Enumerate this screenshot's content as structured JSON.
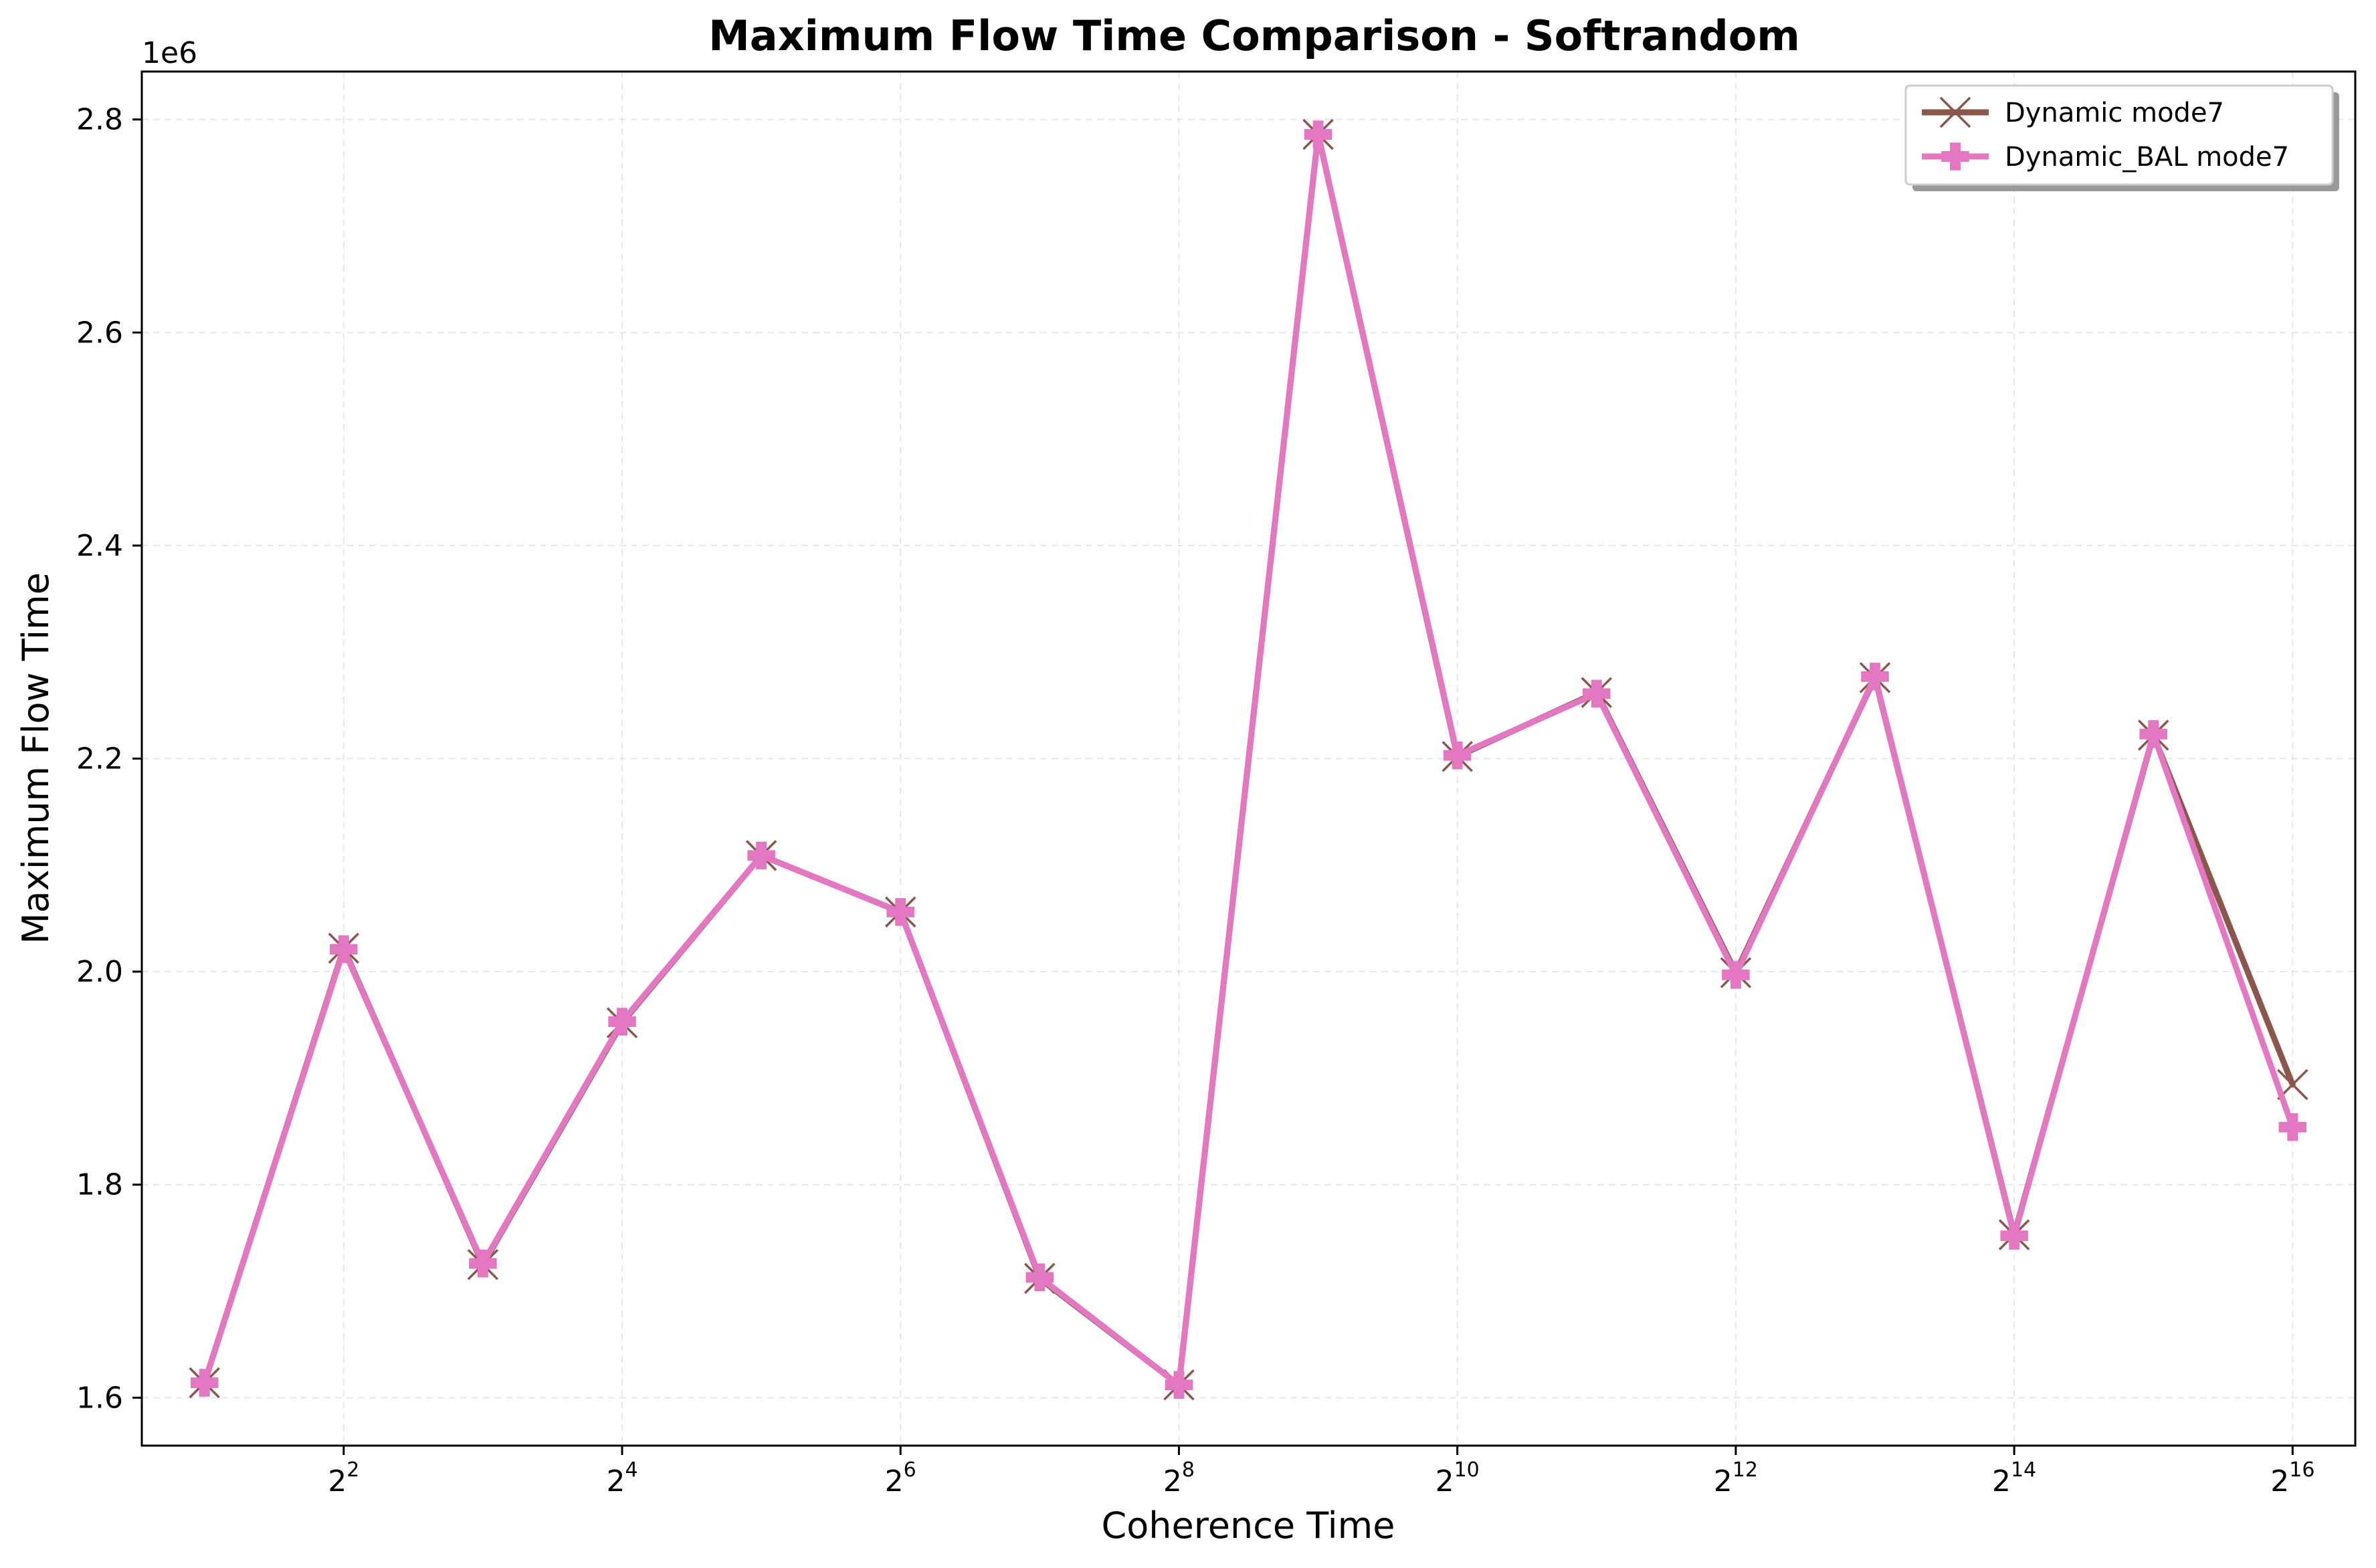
{
  "chart_data": {
    "type": "line",
    "title": "Maximum Flow Time Comparison - Softrandom",
    "xlabel": "Coherence Time",
    "ylabel": "Maximum Flow Time",
    "x_scale": "log2",
    "y_offset_label": "1e6",
    "x": [
      2,
      4,
      8,
      16,
      32,
      64,
      128,
      256,
      512,
      1024,
      2048,
      4096,
      8192,
      16384,
      32768,
      65536
    ],
    "x_ticks": [
      {
        "value": 4,
        "base": "2",
        "exp": "2"
      },
      {
        "value": 16,
        "base": "2",
        "exp": "4"
      },
      {
        "value": 64,
        "base": "2",
        "exp": "6"
      },
      {
        "value": 256,
        "base": "2",
        "exp": "8"
      },
      {
        "value": 1024,
        "base": "2",
        "exp": "10"
      },
      {
        "value": 4096,
        "base": "2",
        "exp": "12"
      },
      {
        "value": 16384,
        "base": "2",
        "exp": "14"
      },
      {
        "value": 65536,
        "base": "2",
        "exp": "16"
      }
    ],
    "y_ticks": [
      {
        "value": 1.6,
        "label": "1.6"
      },
      {
        "value": 1.8,
        "label": "1.8"
      },
      {
        "value": 2.0,
        "label": "2.0"
      },
      {
        "value": 2.2,
        "label": "2.2"
      },
      {
        "value": 2.4,
        "label": "2.4"
      },
      {
        "value": 2.6,
        "label": "2.6"
      },
      {
        "value": 2.8,
        "label": "2.8"
      }
    ],
    "ylim": [
      1.555,
      2.845
    ],
    "xlim_log2": [
      0.55,
      16.45
    ],
    "grid": true,
    "legend_position": "upper right",
    "series": [
      {
        "name": "Dynamic mode7",
        "color": "#8c564b",
        "marker": "x",
        "values": [
          1.614,
          2.022,
          1.725,
          1.952,
          2.109,
          2.056,
          1.712,
          1.612,
          2.786,
          2.202,
          2.262,
          1.999,
          2.276,
          1.753,
          2.222,
          1.894
        ]
      },
      {
        "name": "Dynamic_BAL mode7",
        "color": "#e377c2",
        "marker": "plus-filled",
        "values": [
          1.614,
          2.021,
          1.726,
          1.953,
          2.109,
          2.056,
          1.713,
          1.612,
          2.786,
          2.203,
          2.261,
          1.997,
          2.277,
          1.752,
          2.223,
          1.854
        ]
      }
    ]
  }
}
